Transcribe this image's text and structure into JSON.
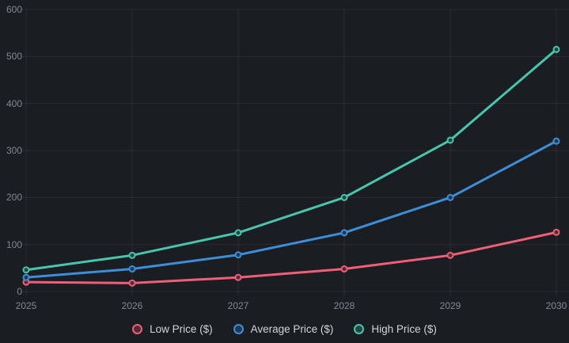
{
  "chart_data": {
    "type": "line",
    "x": [
      "2025",
      "2026",
      "2027",
      "2028",
      "2029",
      "2030"
    ],
    "series": [
      {
        "name": "Low Price ($)",
        "color": "#ef5f78",
        "values": [
          20,
          18,
          30,
          48,
          77,
          126
        ]
      },
      {
        "name": "Average Price ($)",
        "color": "#3d8ed6",
        "values": [
          30,
          48,
          78,
          125,
          200,
          320
        ]
      },
      {
        "name": "High Price ($)",
        "color": "#4ac4ab",
        "values": [
          46,
          77,
          125,
          200,
          322,
          515
        ]
      }
    ],
    "title": "",
    "xlabel": "",
    "ylabel": "",
    "ylim": [
      0,
      600
    ],
    "y_ticks": [
      0,
      100,
      200,
      300,
      400,
      500,
      600
    ],
    "grid": true,
    "legend_position": "bottom"
  },
  "theme": {
    "background": "#1a1d22",
    "grid_color": "rgba(255,255,255,0.07)",
    "tick_color": "#84888f",
    "legend_text_color": "#d2d5d9"
  }
}
